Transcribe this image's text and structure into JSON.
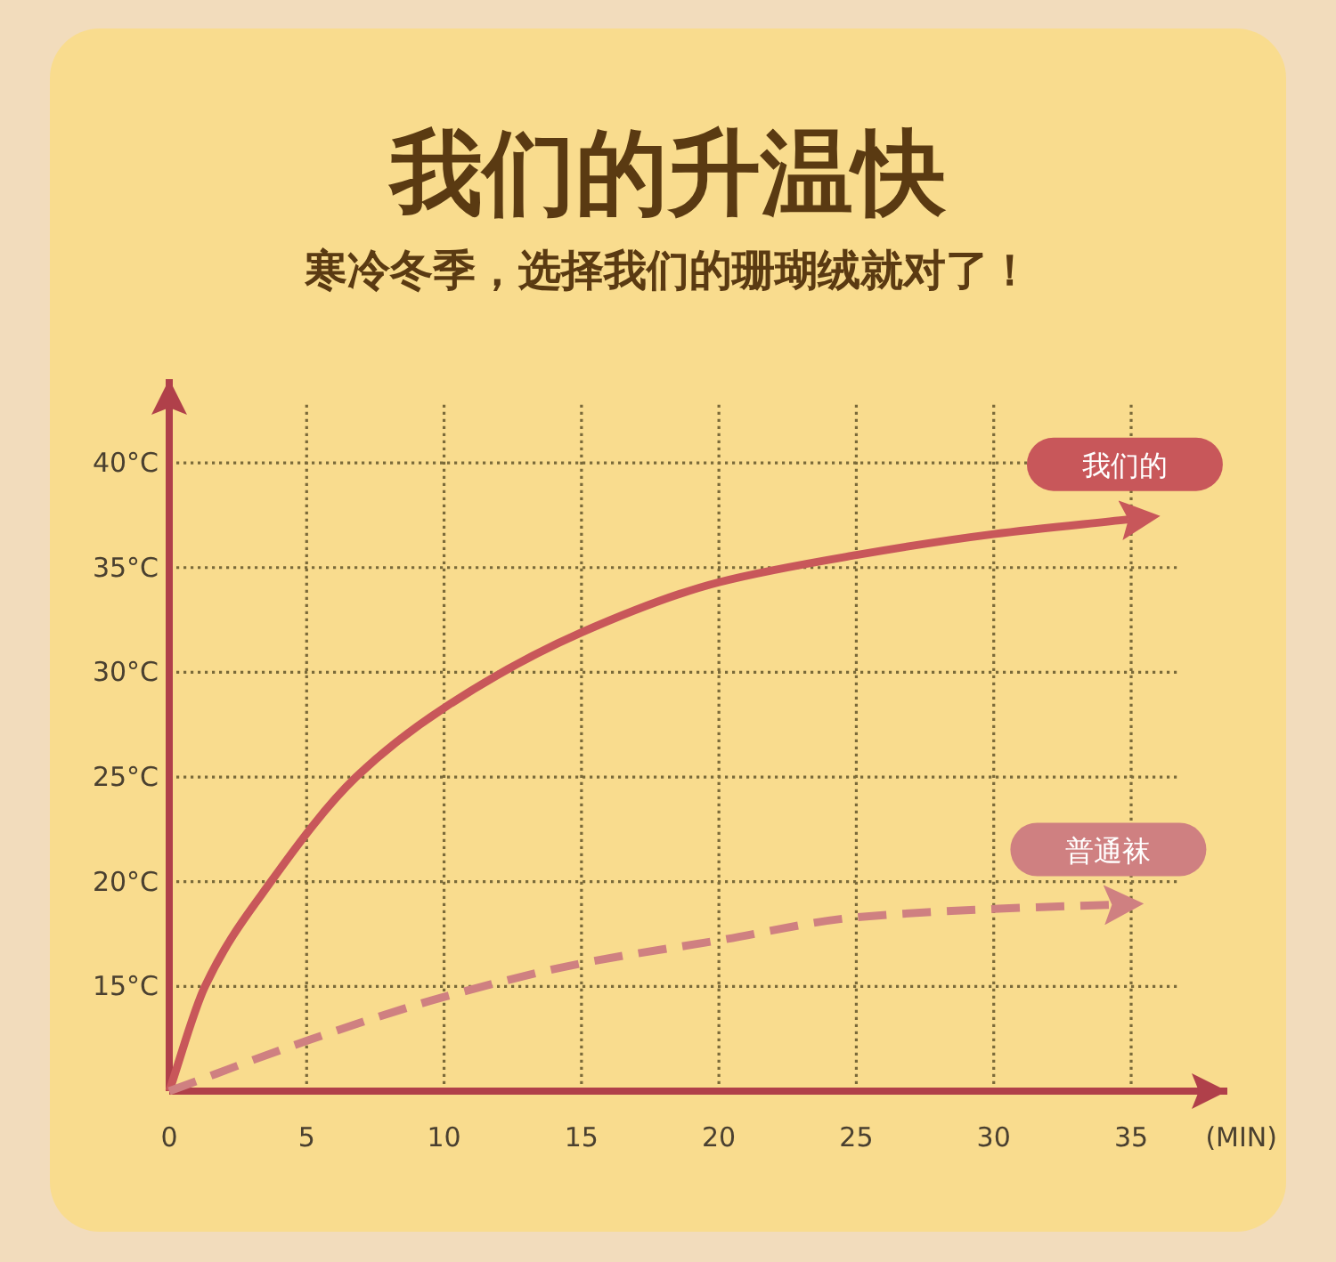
{
  "chart_data": {
    "type": "line",
    "title": "我们的升温快",
    "subtitle": "寒冷冬季，选择我们的珊瑚绒就对了！",
    "xlabel": "(MIN)",
    "xlim": [
      0,
      38.5
    ],
    "ylim": [
      10,
      44
    ],
    "xticks": [
      0,
      5,
      10,
      15,
      20,
      25,
      30,
      35
    ],
    "yticks": [
      {
        "value": 15,
        "label": "15°C"
      },
      {
        "value": 20,
        "label": "20°C"
      },
      {
        "value": 25,
        "label": "25°C"
      },
      {
        "value": 30,
        "label": "30°C"
      },
      {
        "value": 35,
        "label": "35°C"
      },
      {
        "value": 40,
        "label": "40°C"
      }
    ],
    "grid": true,
    "marker": "none",
    "series": [
      {
        "name": "我们的",
        "color": "#c8575a",
        "line_style": "solid",
        "x": [
          0,
          1.3,
          3.7,
          6.8,
          10,
          15,
          20,
          25,
          30,
          34.9
        ],
        "values": [
          10,
          15,
          20,
          25,
          28.3,
          31.9,
          34.3,
          35.6,
          36.6,
          37.3
        ]
      },
      {
        "name": "普通袜",
        "color": "#cf8081",
        "line_style": "dashed",
        "x": [
          0,
          5,
          10,
          15,
          20,
          25,
          30,
          34.3
        ],
        "values": [
          10,
          12.4,
          14.5,
          16.1,
          17.2,
          18.3,
          18.7,
          18.9
        ]
      }
    ]
  }
}
